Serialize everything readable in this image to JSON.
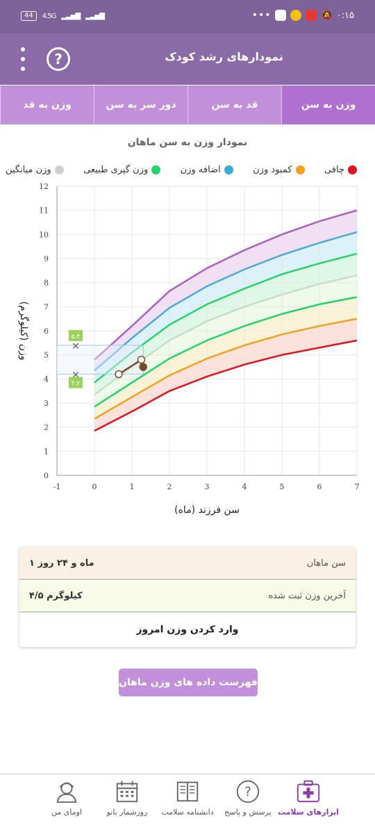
{
  "status": {
    "time": "۰:۱۵",
    "battery": "44",
    "network": "4.5G",
    "dots": "•••"
  },
  "appbar": {
    "title": "نمودارهای رشد کودک",
    "help": "?"
  },
  "tabs": [
    {
      "label": "وزن به سن",
      "active": true
    },
    {
      "label": "قد به سن",
      "active": false
    },
    {
      "label": "دور سر به سن",
      "active": false
    },
    {
      "label": "وزن به قد",
      "active": false
    }
  ],
  "chart_title": "نمودار وزن به سن ماهان",
  "legend": [
    {
      "label": "چاقی",
      "color": "#e0141e"
    },
    {
      "label": "کمبود وزن",
      "color": "#f5a01a"
    },
    {
      "label": "اضافه وزن",
      "color": "#3aa8d8"
    },
    {
      "label": "وزن گیری طبیعی",
      "color": "#24d36a"
    },
    {
      "label": "وزن میانگین",
      "color": "#d0d0d0"
    }
  ],
  "chart_data": {
    "type": "line",
    "xlabel": "سن فرزند (ماه)",
    "ylabel": "وزن (کیلوگرم)",
    "xlim": [
      -1,
      7
    ],
    "ylim": [
      0,
      12
    ],
    "x_ticks": [
      "-1",
      "0",
      "1",
      "2",
      "3",
      "4",
      "5",
      "6",
      "7"
    ],
    "y_ticks": [
      "0",
      "1",
      "2",
      "3",
      "4",
      "5",
      "6",
      "7",
      "8",
      "9",
      "10",
      "11",
      "12"
    ],
    "x": [
      0,
      1,
      2,
      3,
      4,
      5,
      6,
      7
    ],
    "series": [
      {
        "key": "purple",
        "color": "#a95fc4",
        "fill": "#f1dff4",
        "values": [
          4.8,
          6.2,
          7.65,
          8.6,
          9.35,
          10.0,
          10.55,
          11.0
        ]
      },
      {
        "key": "blue",
        "color": "#4aaad5",
        "fill": "#dcf1f8",
        "values": [
          4.35,
          5.7,
          6.95,
          7.85,
          8.55,
          9.15,
          9.65,
          10.1
        ]
      },
      {
        "key": "green",
        "color": "#24d36a",
        "fill": "#def7e6",
        "values": [
          3.85,
          5.1,
          6.25,
          7.1,
          7.75,
          8.35,
          8.8,
          9.2
        ]
      },
      {
        "key": "gray",
        "color": "#c8dccc",
        "fill": "#eefaea",
        "values": [
          3.35,
          4.5,
          5.6,
          6.4,
          7.0,
          7.5,
          7.95,
          8.3
        ]
      },
      {
        "key": "green2",
        "color": "#24d36a",
        "fill": "#fbf3d8",
        "values": [
          2.85,
          3.85,
          4.85,
          5.6,
          6.2,
          6.7,
          7.1,
          7.4
        ]
      },
      {
        "key": "orange",
        "color": "#f5a01a",
        "fill": "#fde2dc",
        "values": [
          2.35,
          3.25,
          4.15,
          4.85,
          5.4,
          5.85,
          6.2,
          6.5
        ]
      },
      {
        "key": "red",
        "color": "#e0141e",
        "fill": "none",
        "values": [
          1.85,
          2.65,
          3.5,
          4.1,
          4.6,
          5.0,
          5.3,
          5.6
        ]
      }
    ],
    "child_points": [
      {
        "x": 0.65,
        "y": 4.2,
        "filled": false
      },
      {
        "x": 1.25,
        "y": 4.8,
        "filled": false
      },
      {
        "x": 1.3,
        "y": 4.5,
        "filled": true
      }
    ],
    "range_box": {
      "x0": -1,
      "x1": 1.3,
      "low": 4.2,
      "high": 5.4
    },
    "range_labels": {
      "low": "۴.۲",
      "high": "۵.۴"
    }
  },
  "info": {
    "age_label": "سن ماهان",
    "age_value": "۱ ماه و ۲۴ روز",
    "weight_label": "آخرین وزن ثبت شده",
    "weight_value": "۴/۵ کیلوگرم",
    "enter_label": "وارد کردن وزن امروز"
  },
  "list_button": "فهرست داده های وزن ماهان",
  "bottomnav": [
    {
      "label": "ابزارهای سلامت",
      "icon": "health-kit-icon",
      "active": true
    },
    {
      "label": "پرسش و پاسخ",
      "icon": "question-icon",
      "active": false
    },
    {
      "label": "دانشنامه سلامت",
      "icon": "encyclopedia-icon",
      "active": false
    },
    {
      "label": "روزشمار بانو",
      "icon": "calendar-icon",
      "active": false
    },
    {
      "label": "اومای من",
      "icon": "profile-icon",
      "active": false
    }
  ]
}
